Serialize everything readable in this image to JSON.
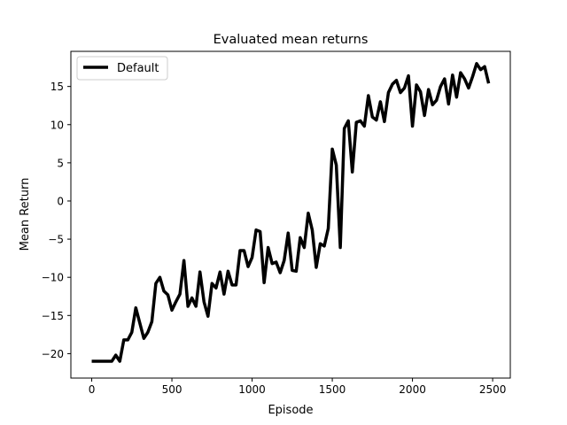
{
  "chart_data": {
    "type": "line",
    "title": "Evaluated mean returns",
    "xlabel": "Episode",
    "ylabel": "Mean Return",
    "xlim": [
      -130,
      2610
    ],
    "ylim": [
      -23.2,
      19.6
    ],
    "xticks": [
      0,
      500,
      1000,
      1500,
      2000,
      2500
    ],
    "yticks": [
      -20,
      -15,
      -10,
      -5,
      0,
      5,
      10,
      15
    ],
    "grid": false,
    "legend_position": "top-left",
    "series": [
      {
        "name": "Default",
        "color": "#000000",
        "x": [
          0,
          25,
          50,
          75,
          100,
          125,
          150,
          175,
          200,
          225,
          250,
          275,
          300,
          325,
          350,
          375,
          400,
          425,
          450,
          475,
          500,
          525,
          550,
          575,
          600,
          625,
          650,
          675,
          700,
          725,
          750,
          775,
          800,
          825,
          850,
          875,
          900,
          925,
          950,
          975,
          1000,
          1025,
          1050,
          1075,
          1100,
          1125,
          1150,
          1175,
          1200,
          1225,
          1250,
          1275,
          1300,
          1325,
          1350,
          1375,
          1400,
          1425,
          1450,
          1475,
          1500,
          1525,
          1550,
          1575,
          1600,
          1625,
          1650,
          1675,
          1700,
          1725,
          1750,
          1775,
          1800,
          1825,
          1850,
          1875,
          1900,
          1925,
          1950,
          1975,
          2000,
          2025,
          2050,
          2075,
          2100,
          2125,
          2150,
          2175,
          2200,
          2225,
          2250,
          2275,
          2300,
          2325,
          2350,
          2375,
          2400,
          2425,
          2450,
          2475
        ],
        "y": [
          -21,
          -21,
          -21,
          -21,
          -21,
          -21,
          -20.2,
          -21,
          -18.2,
          -18.2,
          -17.2,
          -14,
          -16,
          -18,
          -17.2,
          -15.8,
          -10.8,
          -10,
          -11.8,
          -12.3,
          -14.3,
          -13.2,
          -12.2,
          -7.8,
          -13.8,
          -12.7,
          -13.8,
          -9.3,
          -13.2,
          -15.1,
          -10.8,
          -11.4,
          -9.3,
          -12.2,
          -9.2,
          -11,
          -11,
          -6.5,
          -6.5,
          -8.6,
          -7.4,
          -3.8,
          -4,
          -10.7,
          -6.1,
          -8.2,
          -8,
          -9.4,
          -7.8,
          -4.2,
          -9.1,
          -9.2,
          -4.8,
          -6.1,
          -1.6,
          -3.8,
          -8.7,
          -5.6,
          -5.9,
          -3.6,
          6.8,
          4.7,
          -6.1,
          9.5,
          10.5,
          3.8,
          10.3,
          10.5,
          9.8,
          13.8,
          11,
          10.6,
          13,
          10.4,
          14.2,
          15.3,
          15.8,
          14.2,
          14.8,
          16.4,
          9.8,
          15.2,
          14.3,
          11.2,
          14.6,
          12.6,
          13.2,
          15,
          16,
          12.7,
          16.5,
          13.6,
          16.8,
          16,
          14.8,
          16.3,
          18,
          17.2,
          17.6,
          15.4
        ]
      }
    ]
  }
}
